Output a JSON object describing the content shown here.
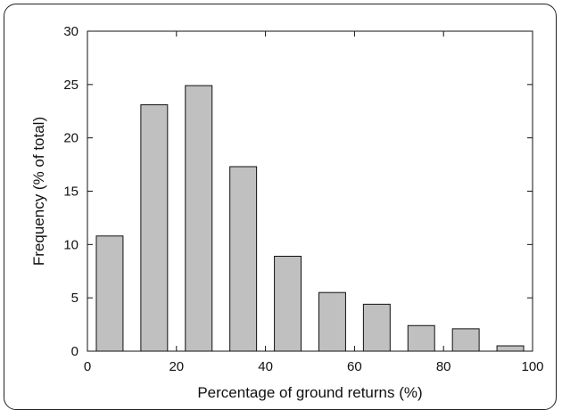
{
  "chart_data": {
    "type": "bar",
    "title": "",
    "xlabel": "Percentage of ground returns (%)",
    "ylabel": "Frequency (% of total)",
    "xlim": [
      0,
      100
    ],
    "ylim": [
      0,
      30
    ],
    "x_ticks": [
      0,
      20,
      40,
      60,
      80,
      100
    ],
    "y_ticks": [
      0,
      5,
      10,
      15,
      20,
      25,
      30
    ],
    "bin_width": 10,
    "x": [
      5,
      15,
      25,
      35,
      45,
      55,
      65,
      75,
      85,
      95
    ],
    "values": [
      10.8,
      23.1,
      24.9,
      17.3,
      8.9,
      5.5,
      4.4,
      2.4,
      2.1,
      0.5
    ],
    "bar_color": "#c0c0c0",
    "grid": false,
    "legend": "none"
  }
}
